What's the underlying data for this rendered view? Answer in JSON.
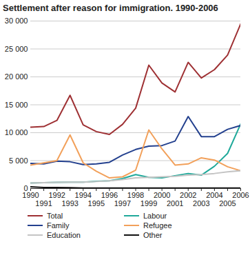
{
  "chart_data": {
    "type": "line",
    "title": "Settlement after reason for immigration. 1990-2006",
    "x": [
      1990,
      1991,
      1992,
      1993,
      1994,
      1995,
      1996,
      1997,
      1998,
      1999,
      2000,
      2001,
      2002,
      2003,
      2004,
      2005,
      2006
    ],
    "xlim": [
      1990,
      2006
    ],
    "xticks": [
      1990,
      1991,
      1992,
      1993,
      1994,
      1995,
      1996,
      1997,
      1998,
      1999,
      2000,
      2001,
      2002,
      2003,
      2004,
      2005,
      2006
    ],
    "ylim": [
      0,
      30000
    ],
    "yticks": [
      0,
      {
        "value": 5000,
        "label": "5 000"
      },
      {
        "value": 10000,
        "label": "10 000"
      },
      {
        "value": 15000,
        "label": "15 000"
      },
      {
        "value": 20000,
        "label": "20 000"
      },
      {
        "value": 25000,
        "label": "25 000"
      },
      {
        "value": 30000,
        "label": "30 000"
      }
    ],
    "grid": true,
    "legend": "bottom",
    "series": [
      {
        "name": "Total",
        "color": "#9e3033",
        "values": [
          11000,
          11100,
          12200,
          16700,
          11400,
          10200,
          9700,
          11500,
          14400,
          22100,
          18900,
          17300,
          22600,
          19800,
          21300,
          23900,
          29500
        ]
      },
      {
        "name": "Labour",
        "color": "#1fa99a",
        "values": [
          1000,
          1050,
          1100,
          1150,
          1150,
          1300,
          1400,
          1800,
          2500,
          2000,
          1900,
          2300,
          2700,
          2400,
          4000,
          6300,
          11600
        ]
      },
      {
        "name": "Family",
        "color": "#23408e",
        "values": [
          4500,
          4400,
          4900,
          4800,
          4300,
          4400,
          4700,
          6000,
          7000,
          7600,
          7700,
          8500,
          12900,
          9300,
          9300,
          10600,
          11300
        ]
      },
      {
        "name": "Refugee",
        "color": "#f2a05a",
        "values": [
          4200,
          4600,
          5000,
          9600,
          4600,
          3100,
          1900,
          2100,
          3300,
          10500,
          7100,
          4200,
          4400,
          5500,
          5100,
          3900,
          3200
        ]
      },
      {
        "name": "Education",
        "color": "#c4c4c4",
        "values": [
          1000,
          1050,
          1100,
          1150,
          1150,
          1250,
          1400,
          1600,
          1900,
          2000,
          2100,
          2200,
          2400,
          2500,
          2700,
          3000,
          3200
        ]
      },
      {
        "name": "Other",
        "color": "#111111",
        "values": [
          300,
          200,
          200,
          150,
          100,
          100,
          100,
          100,
          100,
          100,
          100,
          100,
          100,
          100,
          100,
          100,
          100
        ]
      }
    ]
  }
}
